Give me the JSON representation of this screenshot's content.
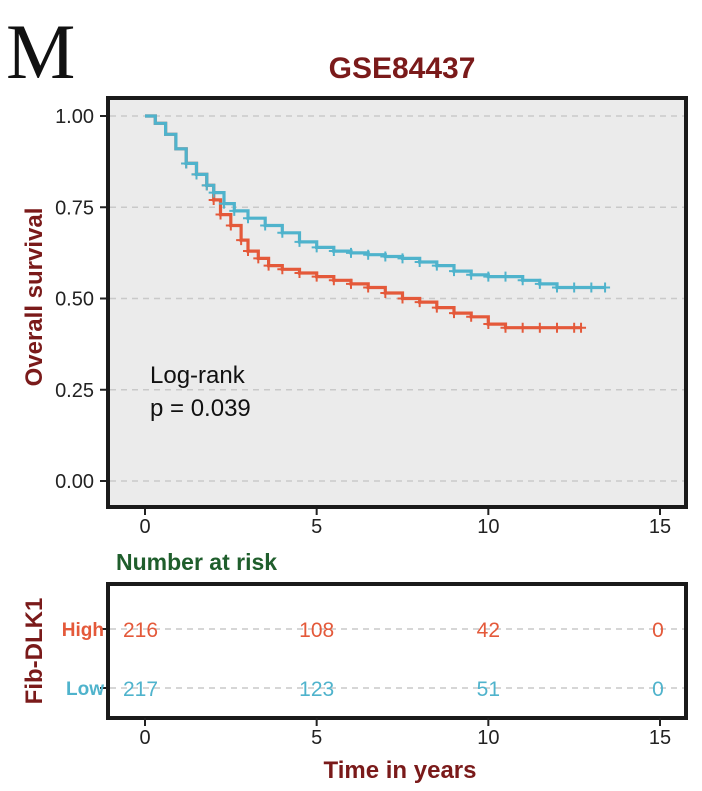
{
  "panel_label": "M",
  "colors": {
    "high": "#e4593a",
    "low": "#4fb3cc",
    "title": "#7a1a1a",
    "risk_title": "#1f5e2c",
    "axis_label": "#7a1a1a",
    "grid": "#c9c9c9",
    "panel_bg": "#ebebeb"
  },
  "chart_data": {
    "type": "line",
    "subtype": "kaplan-meier",
    "title": "GSE84437",
    "ylabel": "Overall survival",
    "xlabel": "Time in years",
    "xlim": [
      0,
      15
    ],
    "ylim": [
      0,
      1
    ],
    "x_ticks": [
      "0",
      "5",
      "10",
      "15"
    ],
    "y_ticks": [
      "0.00",
      "0.25",
      "0.50",
      "0.75",
      "1.00"
    ],
    "grid": "horizontal dashed",
    "annotation": {
      "line1": "Log-rank",
      "line2": "p = 0.039"
    },
    "series": [
      {
        "name": "High",
        "color": "#e4593a",
        "x": [
          0,
          0.3,
          0.6,
          0.9,
          1.2,
          1.5,
          1.8,
          2.0,
          2.2,
          2.5,
          2.8,
          3.0,
          3.3,
          3.6,
          4.0,
          4.5,
          5.0,
          5.5,
          6.0,
          6.5,
          7.0,
          7.5,
          8.0,
          8.5,
          9.0,
          9.5,
          10.0,
          10.5,
          11.0,
          11.5,
          12.0,
          12.5,
          12.7
        ],
        "y": [
          1.0,
          0.98,
          0.95,
          0.91,
          0.87,
          0.84,
          0.81,
          0.77,
          0.73,
          0.7,
          0.66,
          0.63,
          0.61,
          0.59,
          0.58,
          0.57,
          0.56,
          0.55,
          0.54,
          0.53,
          0.515,
          0.5,
          0.49,
          0.475,
          0.46,
          0.45,
          0.43,
          0.42,
          0.42,
          0.42,
          0.42,
          0.42,
          0.42
        ]
      },
      {
        "name": "Low",
        "color": "#4fb3cc",
        "x": [
          0,
          0.3,
          0.6,
          0.9,
          1.2,
          1.5,
          1.8,
          2.0,
          2.3,
          2.6,
          3.0,
          3.5,
          4.0,
          4.5,
          5.0,
          5.5,
          6.0,
          6.5,
          7.0,
          7.5,
          8.0,
          8.5,
          9.0,
          9.5,
          10.0,
          10.5,
          11.0,
          11.5,
          12.0,
          12.5,
          13.0,
          13.4
        ],
        "y": [
          1.0,
          0.98,
          0.95,
          0.91,
          0.87,
          0.84,
          0.81,
          0.79,
          0.76,
          0.74,
          0.72,
          0.7,
          0.68,
          0.655,
          0.64,
          0.63,
          0.625,
          0.62,
          0.615,
          0.61,
          0.6,
          0.59,
          0.575,
          0.565,
          0.56,
          0.56,
          0.55,
          0.54,
          0.53,
          0.53,
          0.53,
          0.53
        ]
      }
    ]
  },
  "risk_table": {
    "title": "Number at risk",
    "ylabel": "Fib-DLK1",
    "time_points": [
      0,
      5,
      10,
      15
    ],
    "x_ticks": [
      "0",
      "5",
      "10",
      "15"
    ],
    "rows": [
      {
        "group": "High",
        "color": "#e4593a",
        "values": [
          "216",
          "108",
          "42",
          "0"
        ]
      },
      {
        "group": "Low",
        "color": "#4fb3cc",
        "values": [
          "217",
          "123",
          "51",
          "0"
        ]
      }
    ]
  }
}
